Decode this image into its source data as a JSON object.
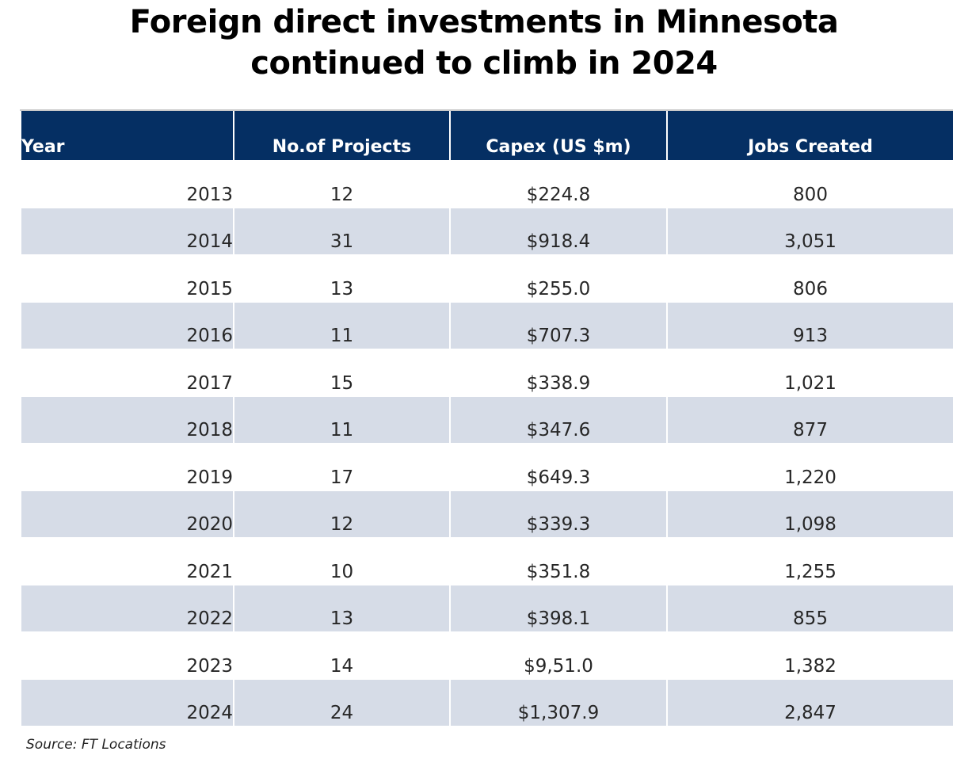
{
  "title_line1": "Foreign direct investments in Minnesota",
  "title_line2": "continued to climb in 2024",
  "chart_data": {
    "type": "table",
    "title": "Foreign direct investments in Minnesota continued to climb in 2024",
    "columns": [
      "Year",
      "No.of Projects",
      "Capex (US $m)",
      "Jobs Created"
    ],
    "rows": [
      [
        "2013",
        "12",
        "$224.8",
        "800"
      ],
      [
        "2014",
        "31",
        "$918.4",
        "3,051"
      ],
      [
        "2015",
        "13",
        "$255.0",
        "806"
      ],
      [
        "2016",
        "11",
        "$707.3",
        "913"
      ],
      [
        "2017",
        "15",
        "$338.9",
        "1,021"
      ],
      [
        "2018",
        "11",
        "$347.6",
        "877"
      ],
      [
        "2019",
        "17",
        "$649.3",
        "1,220"
      ],
      [
        "2020",
        "12",
        "$339.3",
        "1,098"
      ],
      [
        "2021",
        "10",
        "$351.8",
        "1,255"
      ],
      [
        "2022",
        "13",
        "$398.1",
        "855"
      ],
      [
        "2023",
        "14",
        "$9,51.0",
        "1,382"
      ],
      [
        "2024",
        "24",
        "$1,307.9",
        "2,847"
      ]
    ],
    "source": "Source: FT Locations"
  },
  "colors": {
    "header_bg": "#052f63",
    "header_text": "#ffffff",
    "band_bg": "#d6dce7"
  }
}
